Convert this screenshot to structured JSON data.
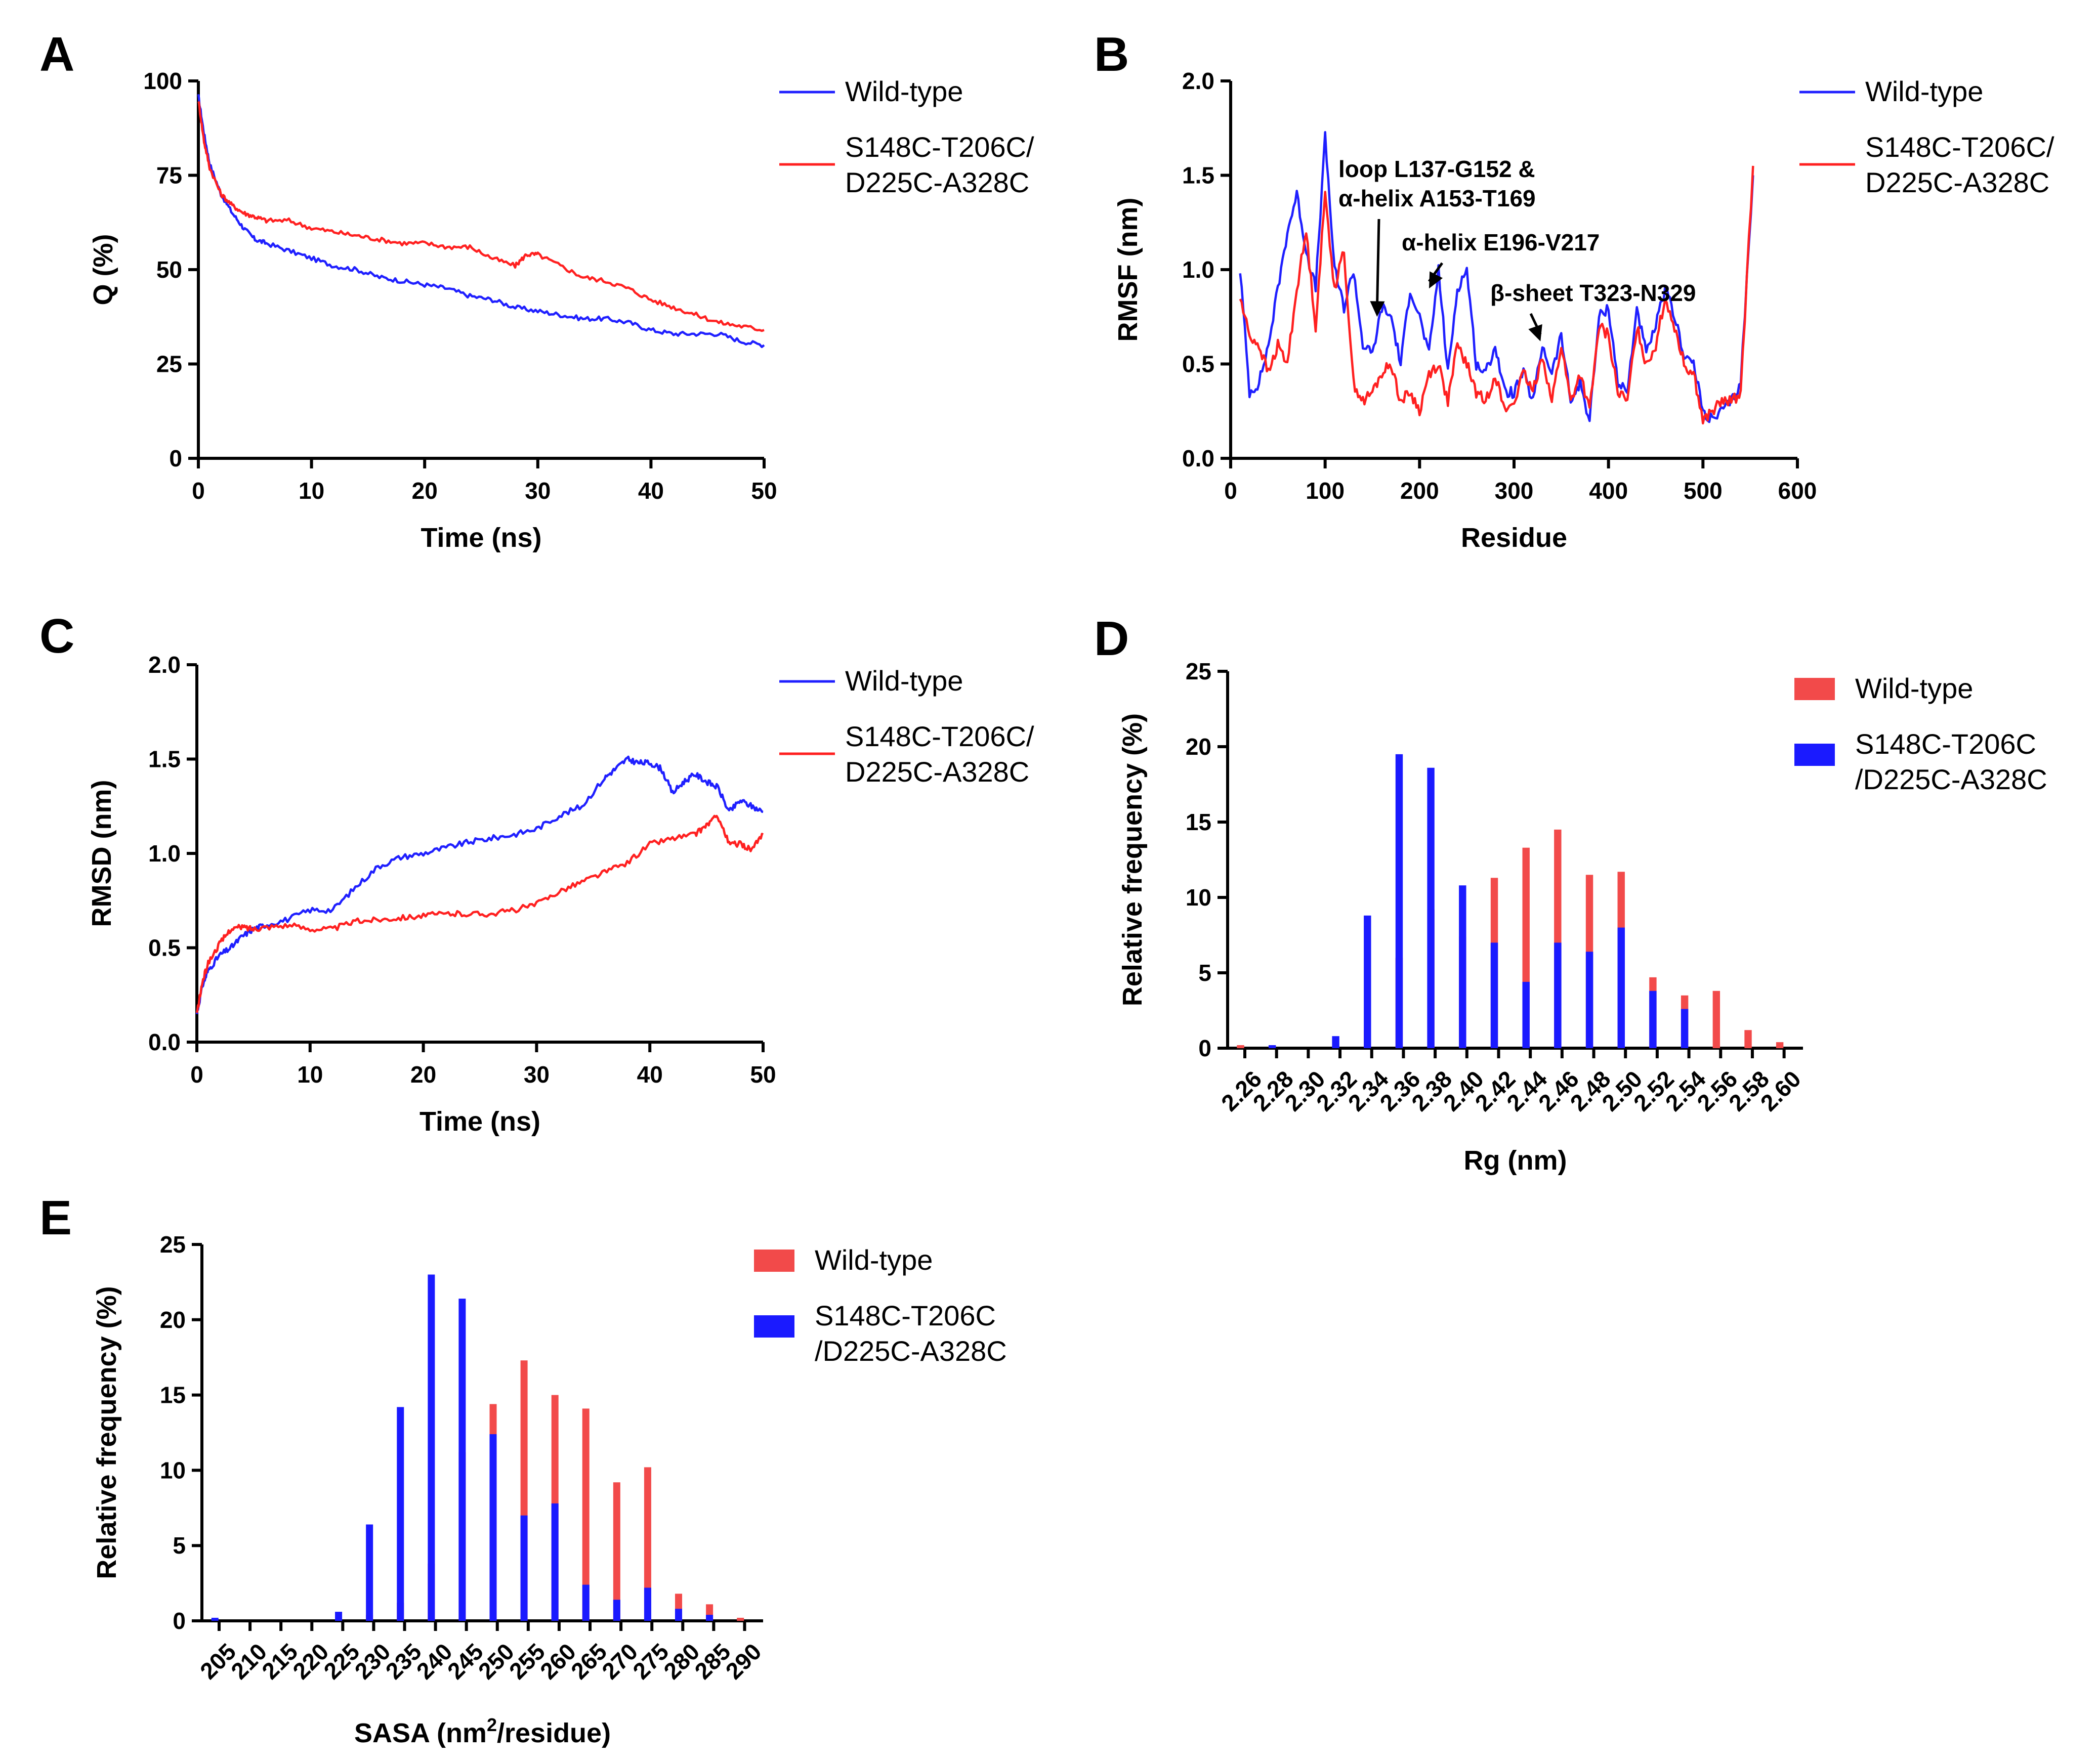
{
  "colors": {
    "wild_type": "#1f1fff",
    "mutant_line": "#ff2020",
    "wt_bar": "#f24a4a",
    "mut_bar": "#1a1aff"
  },
  "chart_data": [
    {
      "panel": "A",
      "type": "line",
      "xlabel": "Time (ns)",
      "ylabel": "Q (%)",
      "xlim": [
        0,
        50
      ],
      "ylim": [
        0,
        100
      ],
      "xticks": [
        "0",
        "10",
        "20",
        "30",
        "40",
        "50"
      ],
      "yticks": [
        "0",
        "25",
        "50",
        "75",
        "100"
      ],
      "legend": [
        "Wild-type",
        "S148C-T206C/",
        "D225C-A328C"
      ],
      "legend_position": "right",
      "series": [
        {
          "name": "Wild-type",
          "color": "#1f1fff",
          "x": [
            0,
            0.5,
            1,
            2,
            3,
            4,
            5,
            6,
            8,
            10,
            12,
            14,
            16,
            18,
            20,
            22,
            24,
            26,
            28,
            30,
            32,
            34,
            36,
            38,
            40,
            42,
            44,
            46,
            48,
            50
          ],
          "y": [
            96,
            86,
            78,
            70,
            65,
            61,
            58,
            57,
            55,
            53,
            51,
            50,
            48,
            47,
            46,
            45,
            43,
            42,
            40,
            39,
            38,
            37,
            37,
            36,
            34,
            33,
            33,
            33,
            31,
            30
          ]
        },
        {
          "name": "S148C-T206C/D225C-A328C",
          "color": "#ff2020",
          "x": [
            0,
            0.5,
            1,
            2,
            3,
            4,
            5,
            6,
            8,
            10,
            12,
            14,
            16,
            18,
            20,
            22,
            24,
            26,
            28,
            29,
            30,
            32,
            34,
            36,
            38,
            40,
            42,
            44,
            46,
            48,
            50
          ],
          "y": [
            95,
            84,
            77,
            70,
            67,
            65,
            64,
            63,
            63,
            61,
            60,
            59,
            58,
            57,
            57,
            56,
            56,
            53,
            51,
            54,
            54,
            51,
            48,
            47,
            45,
            42,
            40,
            38,
            36,
            35,
            34
          ]
        }
      ]
    },
    {
      "panel": "B",
      "type": "line",
      "xlabel": "Residue",
      "ylabel": "RMSF (nm)",
      "xlim": [
        0,
        600
      ],
      "ylim": [
        0,
        2.0
      ],
      "xticks": [
        "0",
        "100",
        "200",
        "300",
        "400",
        "500",
        "600"
      ],
      "yticks": [
        "0.0",
        "0.5",
        "1.0",
        "1.5",
        "2.0"
      ],
      "legend": [
        "Wild-type",
        "S148C-T206C/",
        "D225C-A328C"
      ],
      "legend_position": "right",
      "annotations": [
        {
          "lines": [
            "loop L137-G152 &",
            "α-helix A153-T169"
          ],
          "target": [
            155,
            0.75
          ]
        },
        {
          "lines": [
            "α-helix E196-V217"
          ],
          "target": [
            210,
            0.9
          ]
        },
        {
          "lines": [
            "β-sheet T323-N329"
          ],
          "target": [
            328,
            0.62
          ]
        }
      ],
      "series": [
        {
          "name": "Wild-type",
          "color": "#1f1fff",
          "x": [
            10,
            20,
            30,
            40,
            50,
            60,
            70,
            80,
            90,
            100,
            110,
            120,
            130,
            140,
            150,
            160,
            170,
            180,
            190,
            200,
            210,
            220,
            230,
            240,
            250,
            260,
            270,
            280,
            290,
            300,
            310,
            320,
            330,
            340,
            350,
            360,
            370,
            380,
            390,
            400,
            410,
            420,
            430,
            440,
            450,
            460,
            470,
            480,
            490,
            500,
            510,
            520,
            530,
            540,
            553
          ],
          "y": [
            1.0,
            0.35,
            0.4,
            0.6,
            0.9,
            1.2,
            1.4,
            1.1,
            0.9,
            1.7,
            1.0,
            0.8,
            1.0,
            0.6,
            0.55,
            0.8,
            0.75,
            0.5,
            0.9,
            0.75,
            0.55,
            1.0,
            0.45,
            0.9,
            1.0,
            0.5,
            0.45,
            0.6,
            0.35,
            0.35,
            0.45,
            0.3,
            0.6,
            0.45,
            0.65,
            0.3,
            0.4,
            0.2,
            0.75,
            0.8,
            0.4,
            0.35,
            0.8,
            0.55,
            0.7,
            0.9,
            0.75,
            0.55,
            0.5,
            0.25,
            0.2,
            0.25,
            0.3,
            0.4,
            1.5
          ]
        },
        {
          "name": "S148C-T206C/D225C-A328C",
          "color": "#ff2020",
          "x": [
            10,
            20,
            30,
            40,
            50,
            60,
            70,
            80,
            90,
            100,
            110,
            120,
            130,
            140,
            150,
            160,
            170,
            180,
            190,
            200,
            210,
            220,
            230,
            240,
            250,
            260,
            270,
            280,
            290,
            300,
            310,
            320,
            330,
            340,
            350,
            360,
            370,
            380,
            390,
            400,
            410,
            420,
            430,
            440,
            450,
            460,
            470,
            480,
            490,
            500,
            510,
            520,
            530,
            540,
            553
          ],
          "y": [
            0.85,
            0.65,
            0.6,
            0.45,
            0.6,
            0.5,
            0.9,
            1.2,
            0.7,
            1.4,
            0.9,
            1.1,
            0.4,
            0.3,
            0.35,
            0.45,
            0.5,
            0.3,
            0.35,
            0.25,
            0.45,
            0.5,
            0.3,
            0.6,
            0.5,
            0.35,
            0.3,
            0.45,
            0.25,
            0.3,
            0.45,
            0.35,
            0.55,
            0.3,
            0.6,
            0.3,
            0.45,
            0.25,
            0.7,
            0.65,
            0.35,
            0.3,
            0.7,
            0.5,
            0.6,
            0.85,
            0.7,
            0.5,
            0.45,
            0.2,
            0.25,
            0.3,
            0.3,
            0.35,
            1.55
          ]
        }
      ]
    },
    {
      "panel": "C",
      "type": "line",
      "xlabel": "Time (ns)",
      "ylabel": "RMSD (nm)",
      "xlim": [
        0,
        50
      ],
      "ylim": [
        0,
        2.0
      ],
      "xticks": [
        "0",
        "10",
        "20",
        "30",
        "40",
        "50"
      ],
      "yticks": [
        "0.0",
        "0.5",
        "1.0",
        "1.5",
        "2.0"
      ],
      "legend": [
        "Wild-type",
        "S148C-T206C/",
        "D225C-A328C"
      ],
      "legend_position": "right",
      "series": [
        {
          "name": "Wild-type",
          "color": "#1f1fff",
          "x": [
            0,
            0.5,
            1,
            2,
            3,
            4,
            5,
            6,
            8,
            10,
            12,
            14,
            16,
            18,
            20,
            22,
            24,
            26,
            28,
            30,
            32,
            34,
            36,
            37,
            38,
            39,
            40,
            41,
            42,
            43,
            44,
            45,
            46,
            47,
            48,
            49,
            50
          ],
          "y": [
            0.15,
            0.3,
            0.38,
            0.46,
            0.5,
            0.56,
            0.6,
            0.62,
            0.65,
            0.7,
            0.7,
            0.82,
            0.93,
            0.98,
            1.0,
            1.03,
            1.06,
            1.08,
            1.1,
            1.13,
            1.2,
            1.25,
            1.4,
            1.45,
            1.5,
            1.48,
            1.48,
            1.45,
            1.32,
            1.38,
            1.42,
            1.38,
            1.35,
            1.22,
            1.28,
            1.25,
            1.22
          ]
        },
        {
          "name": "S148C-T206C/D225C-A328C",
          "color": "#ff2020",
          "x": [
            0,
            0.5,
            1,
            2,
            3,
            4,
            5,
            6,
            8,
            10,
            12,
            14,
            16,
            18,
            20,
            22,
            24,
            26,
            28,
            30,
            32,
            34,
            36,
            38,
            40,
            42,
            44,
            45,
            46,
            47,
            48,
            49,
            50
          ],
          "y": [
            0.15,
            0.32,
            0.42,
            0.52,
            0.6,
            0.61,
            0.6,
            0.61,
            0.62,
            0.6,
            0.6,
            0.64,
            0.65,
            0.66,
            0.67,
            0.68,
            0.68,
            0.68,
            0.7,
            0.73,
            0.8,
            0.85,
            0.9,
            0.95,
            1.05,
            1.08,
            1.1,
            1.15,
            1.2,
            1.05,
            1.05,
            1.02,
            1.1
          ]
        }
      ]
    },
    {
      "panel": "D",
      "type": "bar",
      "xlabel": "Rg (nm)",
      "ylabel": "Relative frequency (%)",
      "ylim": [
        0,
        25
      ],
      "yticks": [
        "0",
        "5",
        "10",
        "15",
        "20",
        "25"
      ],
      "categories": [
        "2.26",
        "2.28",
        "2.30",
        "2.32",
        "2.34",
        "2.36",
        "2.38",
        "2.40",
        "2.42",
        "2.44",
        "2.46",
        "2.48",
        "2.50",
        "2.52",
        "2.54",
        "2.56",
        "2.58",
        "2.60"
      ],
      "legend": [
        "Wild-type",
        "S148C-T206C",
        "/D225C-A328C"
      ],
      "legend_position": "right",
      "series": [
        {
          "name": "Wild-type",
          "color": "#f24a4a",
          "values": [
            0.2,
            0,
            0,
            0,
            1.2,
            6.0,
            9.2,
            7.4,
            11.3,
            13.3,
            14.5,
            11.5,
            11.7,
            4.7,
            3.5,
            3.8,
            1.2,
            0.4
          ]
        },
        {
          "name": "S148C-T206C/D225C-A328C",
          "color": "#1a1aff",
          "values": [
            0,
            0.2,
            0,
            0.8,
            8.8,
            19.5,
            18.6,
            10.8,
            7.0,
            4.4,
            7.0,
            6.4,
            8.0,
            3.8,
            2.6,
            0,
            0,
            0
          ]
        }
      ]
    },
    {
      "panel": "E",
      "type": "bar",
      "xlabel": "SASA (nm",
      "xlabel_sup": "2",
      "xlabel_tail": "/residue)",
      "ylabel": "Relative frequency (%)",
      "ylim": [
        0,
        25
      ],
      "yticks": [
        "0",
        "5",
        "10",
        "15",
        "20",
        "25"
      ],
      "categories": [
        "205",
        "210",
        "215",
        "220",
        "225",
        "230",
        "235",
        "240",
        "245",
        "250",
        "255",
        "260",
        "265",
        "270",
        "275",
        "280",
        "285",
        "290"
      ],
      "legend": [
        "Wild-type",
        "S148C-T206C",
        "/D225C-A328C"
      ],
      "legend_position": "right",
      "series": [
        {
          "name": "Wild-type",
          "color": "#f24a4a",
          "values": [
            0,
            0,
            0,
            0,
            0,
            0.4,
            1.2,
            3.8,
            11.2,
            14.4,
            17.3,
            15.0,
            14.1,
            9.2,
            10.2,
            1.8,
            1.1,
            0.2
          ]
        },
        {
          "name": "S148C-T206C/D225C-A328C",
          "color": "#1a1aff",
          "values": [
            0.2,
            0,
            0,
            0,
            0.6,
            6.4,
            14.2,
            23.0,
            21.4,
            12.4,
            7.0,
            7.8,
            2.4,
            1.4,
            2.2,
            0.8,
            0.4,
            0
          ]
        }
      ]
    }
  ]
}
